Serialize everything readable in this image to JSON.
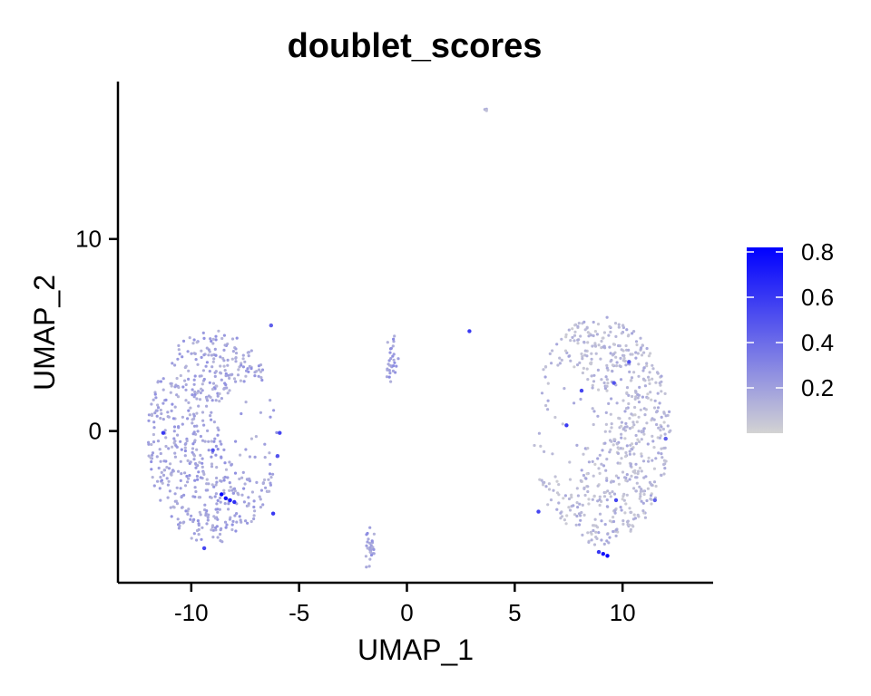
{
  "chart_data": {
    "type": "scatter",
    "title": "doublet_scores",
    "xlabel": "UMAP_1",
    "ylabel": "UMAP_2",
    "xlim": [
      -13.4,
      14.2
    ],
    "ylim": [
      -7.9,
      18.2
    ],
    "x_ticks": [
      -10,
      -5,
      0,
      5,
      10
    ],
    "x_tick_labels": [
      "-10",
      "-5",
      "0",
      "5",
      "10"
    ],
    "y_ticks": [
      0,
      10
    ],
    "y_tick_labels": [
      "0",
      "10"
    ],
    "grid": false,
    "legend_position": "right",
    "color_scale": {
      "name": "doublet_scores",
      "low_color": "#d3d3d3",
      "high_color": "#0000ff",
      "min": 0.0,
      "max": 0.82,
      "ticks": [
        0.2,
        0.4,
        0.6,
        0.8
      ],
      "tick_labels": [
        "0.2",
        "0.4",
        "0.6",
        "0.8"
      ]
    },
    "clusters": [
      {
        "shape": "crescent",
        "center": [
          -9.0,
          -0.3
        ],
        "r_outer": 3.2,
        "r_inner": 1.6,
        "inner_center": [
          -7.0,
          0.1
        ],
        "density": 600,
        "mean_score": 0.18
      },
      {
        "shape": "crescent",
        "center": [
          9.0,
          0.0
        ],
        "r_outer": 3.4,
        "r_inner": 1.9,
        "inner_center": [
          7.2,
          0.3
        ],
        "density": 650,
        "mean_score": 0.1
      },
      {
        "shape": "blob",
        "center": [
          -0.7,
          3.7
        ],
        "sx": 0.15,
        "sy": 0.55,
        "density": 30,
        "mean_score": 0.2
      },
      {
        "shape": "blob",
        "center": [
          -1.7,
          -6.2
        ],
        "sx": 0.12,
        "sy": 0.5,
        "density": 28,
        "mean_score": 0.2
      },
      {
        "shape": "blob",
        "center": [
          3.7,
          16.7
        ],
        "sx": 0.05,
        "sy": 0.05,
        "density": 4,
        "mean_score": 0.1
      }
    ],
    "highlighted_points": [
      {
        "x": -8.6,
        "y": -3.3,
        "score": 0.8
      },
      {
        "x": -8.4,
        "y": -3.5,
        "score": 0.75
      },
      {
        "x": -8.2,
        "y": -3.6,
        "score": 0.7
      },
      {
        "x": -8.0,
        "y": -3.7,
        "score": 0.65
      },
      {
        "x": -6.2,
        "y": -4.3,
        "score": 0.6
      },
      {
        "x": -11.3,
        "y": -0.1,
        "score": 0.6
      },
      {
        "x": -5.9,
        "y": -0.1,
        "score": 0.55
      },
      {
        "x": -9.0,
        "y": -1.0,
        "score": 0.5
      },
      {
        "x": -6.0,
        "y": -1.3,
        "score": 0.5
      },
      {
        "x": -9.4,
        "y": -6.1,
        "score": 0.55
      },
      {
        "x": -6.3,
        "y": 5.5,
        "score": 0.45
      },
      {
        "x": 2.9,
        "y": 5.2,
        "score": 0.6
      },
      {
        "x": 9.3,
        "y": -6.5,
        "score": 0.8
      },
      {
        "x": 9.1,
        "y": -6.4,
        "score": 0.75
      },
      {
        "x": 8.9,
        "y": -6.3,
        "score": 0.6
      },
      {
        "x": 7.4,
        "y": 0.3,
        "score": 0.6
      },
      {
        "x": 6.1,
        "y": -4.2,
        "score": 0.55
      },
      {
        "x": 9.7,
        "y": -3.6,
        "score": 0.55
      },
      {
        "x": 10.3,
        "y": 3.6,
        "score": 0.5
      },
      {
        "x": 8.1,
        "y": 2.1,
        "score": 0.55
      },
      {
        "x": 11.5,
        "y": -3.6,
        "score": 0.45
      },
      {
        "x": 12.0,
        "y": -0.4,
        "score": 0.45
      },
      {
        "x": 9.6,
        "y": 2.5,
        "score": 0.5
      }
    ]
  }
}
